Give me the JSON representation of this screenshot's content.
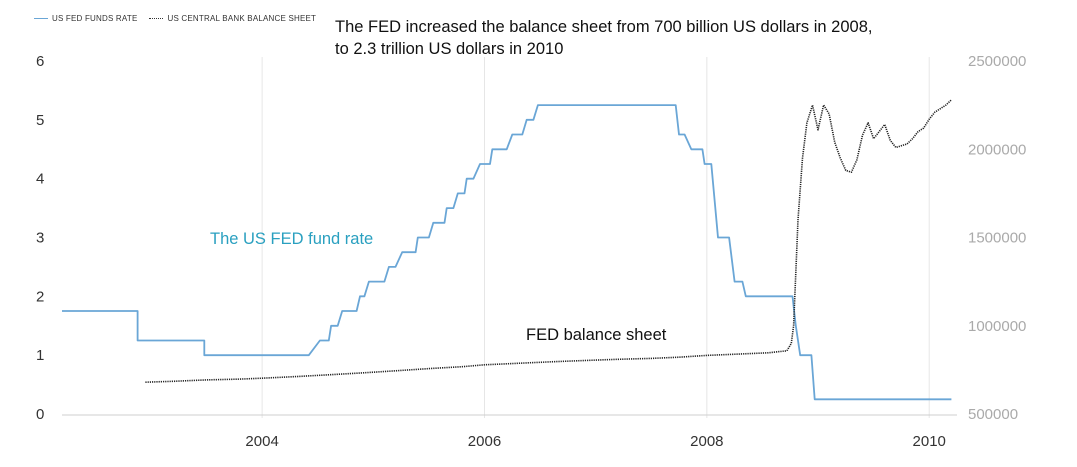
{
  "legend": {
    "series1": "US FED FUNDS RATE",
    "series2": "US CENTRAL BANK BALANCE SHEET"
  },
  "annotations": {
    "main_line1": "The FED increased the balance sheet from 700 billion US dollars in 2008,",
    "main_line2": "to 2.3 trillion US dollars in 2010",
    "fed_rate_label": "The US FED fund rate",
    "balance_sheet_label": "FED balance sheet"
  },
  "colors": {
    "fed_rate": "#6aa6d6",
    "balance_sheet": "#222222",
    "grid": "#e6e6e6",
    "right_axis_text": "#aaaaaa",
    "left_axis_text": "#333333"
  },
  "chart_data": {
    "type": "line",
    "title": "",
    "xlabel": "",
    "ylabel": "",
    "xlim": [
      2002.2,
      2010.25
    ],
    "x_ticks": [
      2004,
      2006,
      2008,
      2010
    ],
    "y_left": {
      "lim": [
        0,
        6
      ],
      "ticks": [
        0,
        1,
        2,
        3,
        4,
        5,
        6
      ]
    },
    "y_right": {
      "lim": [
        500000,
        2500000
      ],
      "ticks": [
        500000,
        1000000,
        1500000,
        2000000,
        2500000
      ]
    },
    "grid": "vertical",
    "legend_position": "top-left",
    "series": [
      {
        "name": "US FED FUNDS RATE",
        "axis": "left",
        "style": "solid",
        "points": [
          [
            2002.2,
            1.75
          ],
          [
            2002.88,
            1.75
          ],
          [
            2002.88,
            1.25
          ],
          [
            2003.48,
            1.25
          ],
          [
            2003.48,
            1.0
          ],
          [
            2004.42,
            1.0
          ],
          [
            2004.52,
            1.25
          ],
          [
            2004.6,
            1.25
          ],
          [
            2004.62,
            1.5
          ],
          [
            2004.68,
            1.5
          ],
          [
            2004.72,
            1.75
          ],
          [
            2004.85,
            1.75
          ],
          [
            2004.88,
            2.0
          ],
          [
            2004.92,
            2.0
          ],
          [
            2004.96,
            2.25
          ],
          [
            2005.1,
            2.25
          ],
          [
            2005.14,
            2.5
          ],
          [
            2005.2,
            2.5
          ],
          [
            2005.26,
            2.75
          ],
          [
            2005.38,
            2.75
          ],
          [
            2005.4,
            3.0
          ],
          [
            2005.5,
            3.0
          ],
          [
            2005.54,
            3.25
          ],
          [
            2005.64,
            3.25
          ],
          [
            2005.66,
            3.5
          ],
          [
            2005.72,
            3.5
          ],
          [
            2005.76,
            3.75
          ],
          [
            2005.82,
            3.75
          ],
          [
            2005.84,
            4.0
          ],
          [
            2005.9,
            4.0
          ],
          [
            2005.96,
            4.25
          ],
          [
            2006.05,
            4.25
          ],
          [
            2006.07,
            4.5
          ],
          [
            2006.2,
            4.5
          ],
          [
            2006.25,
            4.75
          ],
          [
            2006.34,
            4.75
          ],
          [
            2006.38,
            5.0
          ],
          [
            2006.44,
            5.0
          ],
          [
            2006.48,
            5.25
          ],
          [
            2007.72,
            5.25
          ],
          [
            2007.75,
            4.75
          ],
          [
            2007.8,
            4.75
          ],
          [
            2007.86,
            4.5
          ],
          [
            2007.96,
            4.5
          ],
          [
            2007.98,
            4.25
          ],
          [
            2008.04,
            4.25
          ],
          [
            2008.1,
            3.0
          ],
          [
            2008.2,
            3.0
          ],
          [
            2008.25,
            2.25
          ],
          [
            2008.32,
            2.25
          ],
          [
            2008.35,
            2.0
          ],
          [
            2008.77,
            2.0
          ],
          [
            2008.8,
            1.5
          ],
          [
            2008.84,
            1.0
          ],
          [
            2008.94,
            1.0
          ],
          [
            2008.97,
            0.25
          ],
          [
            2010.2,
            0.25
          ]
        ]
      },
      {
        "name": "US CENTRAL BANK BALANCE SHEET",
        "axis": "right",
        "style": "dotted",
        "points": [
          [
            2002.95,
            680000
          ],
          [
            2003.2,
            685000
          ],
          [
            2003.5,
            693000
          ],
          [
            2003.8,
            698000
          ],
          [
            2004.0,
            703000
          ],
          [
            2004.3,
            712000
          ],
          [
            2004.6,
            722000
          ],
          [
            2004.9,
            733000
          ],
          [
            2005.2,
            745000
          ],
          [
            2005.5,
            757000
          ],
          [
            2005.8,
            768000
          ],
          [
            2006.0,
            779000
          ],
          [
            2006.3,
            787000
          ],
          [
            2006.6,
            796000
          ],
          [
            2006.9,
            803000
          ],
          [
            2007.2,
            810000
          ],
          [
            2007.5,
            815000
          ],
          [
            2007.75,
            822000
          ],
          [
            2008.0,
            832000
          ],
          [
            2008.3,
            840000
          ],
          [
            2008.55,
            847000
          ],
          [
            2008.72,
            858000
          ],
          [
            2008.76,
            900000
          ],
          [
            2008.78,
            1000000
          ],
          [
            2008.8,
            1300000
          ],
          [
            2008.82,
            1600000
          ],
          [
            2008.86,
            1950000
          ],
          [
            2008.9,
            2150000
          ],
          [
            2008.95,
            2250000
          ],
          [
            2009.0,
            2110000
          ],
          [
            2009.05,
            2250000
          ],
          [
            2009.1,
            2200000
          ],
          [
            2009.15,
            2040000
          ],
          [
            2009.2,
            1950000
          ],
          [
            2009.25,
            1880000
          ],
          [
            2009.3,
            1870000
          ],
          [
            2009.35,
            1940000
          ],
          [
            2009.4,
            2080000
          ],
          [
            2009.45,
            2150000
          ],
          [
            2009.5,
            2060000
          ],
          [
            2009.55,
            2100000
          ],
          [
            2009.6,
            2140000
          ],
          [
            2009.65,
            2050000
          ],
          [
            2009.7,
            2010000
          ],
          [
            2009.75,
            2020000
          ],
          [
            2009.8,
            2030000
          ],
          [
            2009.85,
            2060000
          ],
          [
            2009.9,
            2100000
          ],
          [
            2009.95,
            2120000
          ],
          [
            2010.0,
            2170000
          ],
          [
            2010.05,
            2210000
          ],
          [
            2010.1,
            2230000
          ],
          [
            2010.15,
            2250000
          ],
          [
            2010.2,
            2280000
          ]
        ]
      }
    ]
  }
}
